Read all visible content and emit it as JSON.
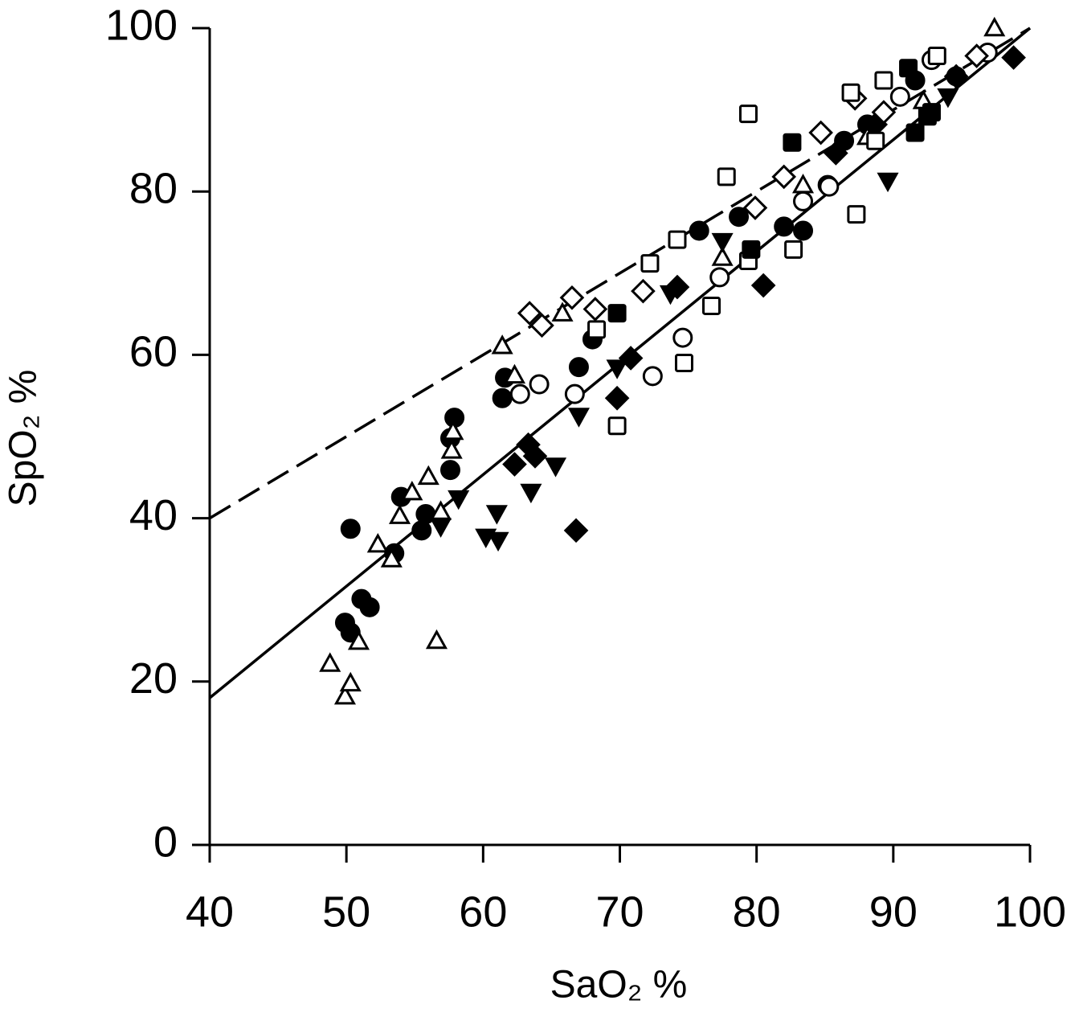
{
  "chart_data": {
    "type": "scatter",
    "xlabel": "SaO₂ %",
    "ylabel": "SpO₂ %",
    "xlim": [
      40,
      100
    ],
    "ylim": [
      0,
      100
    ],
    "xticks": [
      40,
      50,
      60,
      70,
      80,
      90,
      100
    ],
    "yticks": [
      0,
      20,
      40,
      60,
      80,
      100
    ],
    "color": "#000000",
    "series": [
      {
        "marker": "circle",
        "filled": true,
        "x": [
          50.3,
          49.9,
          50.3,
          51.1,
          51.7,
          53.5,
          54.0,
          55.5,
          55.8,
          57.6,
          57.9,
          57.6,
          61.4,
          61.6,
          67.0,
          68.0,
          75.8,
          78.7,
          82.0,
          83.4,
          85.2,
          86.4,
          88.1,
          91.6,
          94.6
        ],
        "values": [
          38.7,
          27.2,
          26.0,
          30.1,
          29.1,
          35.7,
          42.6,
          38.5,
          40.5,
          45.9,
          52.3,
          49.8,
          54.7,
          57.2,
          58.5,
          61.9,
          75.2,
          76.9,
          75.7,
          75.2,
          80.8,
          86.2,
          88.2,
          93.6,
          94.1
        ]
      },
      {
        "marker": "circle",
        "filled": false,
        "x": [
          62.7,
          64.1,
          66.7,
          72.4,
          74.6,
          77.3,
          83.4,
          85.3,
          90.5,
          92.8,
          96.9
        ],
        "values": [
          55.2,
          56.4,
          55.2,
          57.4,
          62.1,
          69.5,
          78.8,
          80.6,
          91.6,
          96.1,
          97.0
        ]
      },
      {
        "marker": "triangle",
        "filled": false,
        "x": [
          48.8,
          49.9,
          50.3,
          50.9,
          52.3,
          53.3,
          53.9,
          54.8,
          56.6,
          56.9,
          56.0,
          57.7,
          57.8,
          61.4,
          62.3,
          65.8,
          77.5,
          83.4,
          88.1,
          92.2,
          97.4
        ],
        "values": [
          22.2,
          18.2,
          19.8,
          24.9,
          36.8,
          35.0,
          40.3,
          43.2,
          25.0,
          40.8,
          45.1,
          48.3,
          50.6,
          61.1,
          57.5,
          65.1,
          71.9,
          80.8,
          86.7,
          91.1,
          100
        ]
      },
      {
        "marker": "triangle-down",
        "filled": true,
        "x": [
          56.9,
          58.2,
          60.2,
          61.0,
          61.1,
          63.5,
          65.3,
          67.0,
          69.8,
          73.7,
          77.5,
          89.6,
          94.0
        ],
        "values": [
          39.0,
          42.4,
          37.7,
          40.6,
          37.3,
          43.2,
          46.4,
          52.5,
          58.4,
          67.5,
          73.9,
          81.3,
          91.6
        ]
      },
      {
        "marker": "diamond",
        "filled": true,
        "x": [
          62.3,
          63.3,
          63.8,
          66.8,
          69.8,
          70.8,
          74.2,
          80.5,
          85.8,
          88.7,
          94.6,
          98.8
        ],
        "values": [
          46.6,
          49.0,
          47.6,
          38.5,
          54.7,
          59.6,
          68.3,
          68.5,
          84.7,
          88.2,
          94.1,
          96.4
        ]
      },
      {
        "marker": "diamond",
        "filled": false,
        "x": [
          63.4,
          64.3,
          66.5,
          68.2,
          71.7,
          79.9,
          82.0,
          84.7,
          87.2,
          89.3,
          96.1
        ],
        "values": [
          65.1,
          63.6,
          67.0,
          65.6,
          67.8,
          78.0,
          81.8,
          87.2,
          91.4,
          89.7,
          96.6
        ]
      },
      {
        "marker": "square",
        "filled": false,
        "x": [
          68.3,
          69.8,
          72.2,
          74.2,
          74.7,
          76.7,
          77.8,
          79.4,
          79.4,
          82.7,
          87.3,
          86.9,
          88.7,
          89.3,
          93.2
        ],
        "values": [
          63.1,
          51.3,
          71.2,
          74.1,
          59.0,
          66.0,
          81.8,
          71.5,
          89.5,
          72.9,
          77.2,
          92.1,
          86.2,
          93.6,
          96.6
        ]
      },
      {
        "marker": "square",
        "filled": true,
        "x": [
          69.8,
          79.6,
          82.6,
          91.1,
          92.5,
          91.6,
          92.8
        ],
        "values": [
          65.1,
          72.9,
          86.0,
          95.1,
          89.2,
          87.2,
          89.7
        ]
      }
    ],
    "lines": [
      {
        "dashed": true,
        "x": [
          40,
          100
        ],
        "values": [
          40,
          100
        ]
      },
      {
        "dashed": false,
        "x": [
          40,
          100
        ],
        "values": [
          18,
          100
        ]
      }
    ]
  }
}
